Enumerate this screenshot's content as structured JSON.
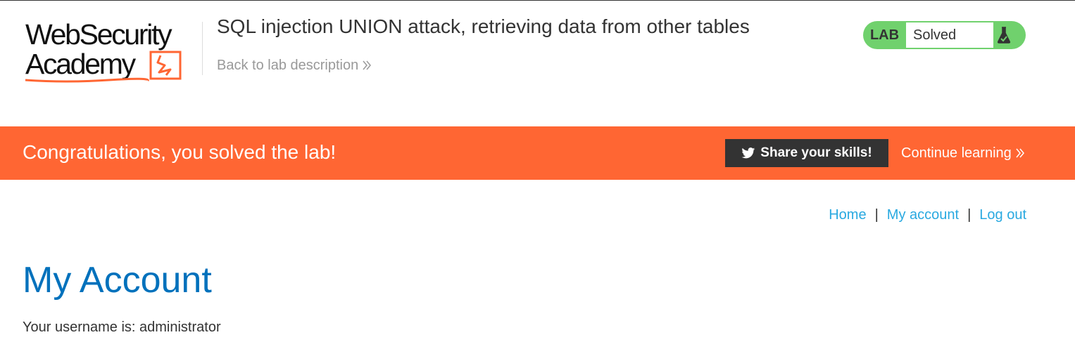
{
  "header": {
    "logo": {
      "line1": "WebSecurity",
      "line2": "Academy"
    },
    "lab_title": "SQL injection UNION attack, retrieving data from other tables",
    "back_link": "Back to lab description",
    "lab_badge": {
      "label": "LAB",
      "status": "Solved",
      "icon": "flask-icon"
    }
  },
  "banner": {
    "message": "Congratulations, you solved the lab!",
    "share_button": "Share your skills!",
    "share_icon": "twitter-icon",
    "continue_link": "Continue learning"
  },
  "nav": {
    "home": "Home",
    "my_account": "My account",
    "log_out": "Log out",
    "separator": "|"
  },
  "main": {
    "title": "My Account",
    "username_line": "Your username is: administrator"
  },
  "colors": {
    "brand_orange": "#ff6633",
    "badge_green": "#70d16d",
    "link_blue": "#29a9e0",
    "heading_blue": "#0071bc",
    "dark": "#333333"
  }
}
